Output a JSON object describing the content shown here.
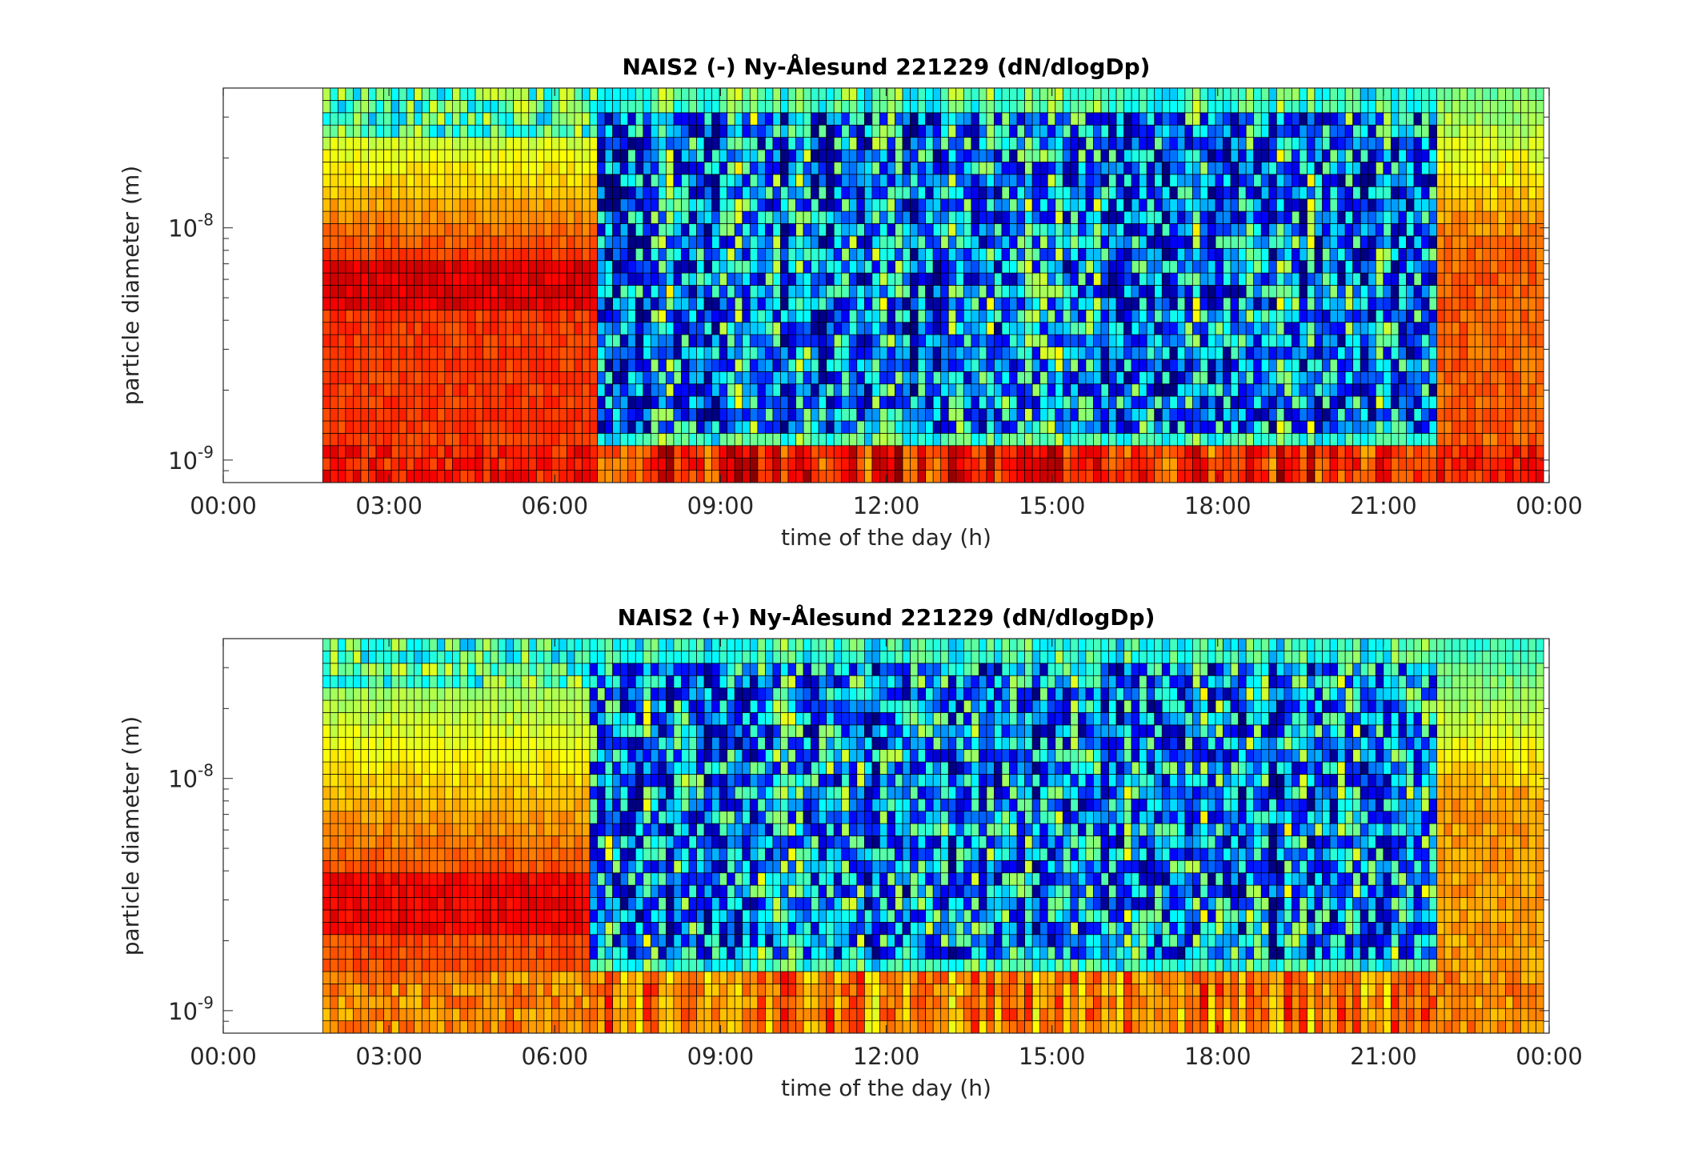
{
  "chart_data": [
    {
      "type": "heatmap",
      "title": "NAIS2 (-) Ny-Ålesund 221229 (dN/dlogDp)",
      "xlabel": "time of the day (h)",
      "ylabel": "particle diameter (m)",
      "x_ticks": [
        "00:00",
        "03:00",
        "06:00",
        "09:00",
        "12:00",
        "15:00",
        "18:00",
        "21:00",
        "00:00"
      ],
      "x_range_hours": [
        0,
        24
      ],
      "data_start_hour": 1.8,
      "data_end_hour": 23.9,
      "y_scale": "log",
      "y_range_m": [
        8e-10,
        4e-08
      ],
      "y_ticks": [
        {
          "base": "10",
          "exp": "-9",
          "value": 1e-09
        },
        {
          "base": "10",
          "exp": "-8",
          "value": 1e-08
        }
      ],
      "colormap": "jet",
      "features": {
        "background_level": 0.45,
        "high_concentration_night": {
          "from_hour": 1.8,
          "to_hour": 6.8,
          "level": 0.82
        },
        "night_band_diameter_m": [
          4.5e-09,
          7.5e-09
        ],
        "evening_high": {
          "from_hour": 22.0,
          "to_hour": 23.9,
          "level": 0.78
        },
        "smallest_bin_band": {
          "max_diameter_m": 1.2e-09,
          "level": 0.85
        },
        "daytime_low_diameter_m": [
          1.3e-09,
          3e-08
        ]
      }
    },
    {
      "type": "heatmap",
      "title": "NAIS2 (+) Ny-Ålesund 221229 (dN/dlogDp)",
      "xlabel": "time of the day (h)",
      "ylabel": "particle diameter (m)",
      "x_ticks": [
        "00:00",
        "03:00",
        "06:00",
        "09:00",
        "12:00",
        "15:00",
        "18:00",
        "21:00",
        "00:00"
      ],
      "x_range_hours": [
        0,
        24
      ],
      "data_start_hour": 1.8,
      "data_end_hour": 23.9,
      "y_scale": "log",
      "y_range_m": [
        8e-10,
        4e-08
      ],
      "y_ticks": [
        {
          "base": "10",
          "exp": "-9",
          "value": 1e-09
        },
        {
          "base": "10",
          "exp": "-8",
          "value": 1e-08
        }
      ],
      "colormap": "jet",
      "features": {
        "background_level": 0.42,
        "high_concentration_night": {
          "from_hour": 1.8,
          "to_hour": 6.6,
          "level": 0.8
        },
        "night_band_diameter_m": [
          2.2e-09,
          4e-09
        ],
        "evening_high": {
          "from_hour": 22.0,
          "to_hour": 23.9,
          "level": 0.72
        },
        "smallest_bin_band": {
          "max_diameter_m": 1.5e-09,
          "level": 0.74
        },
        "daytime_low_diameter_m": [
          1.7e-09,
          3e-08
        ]
      }
    }
  ]
}
